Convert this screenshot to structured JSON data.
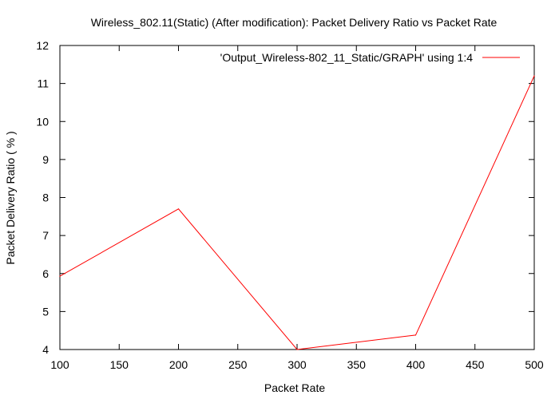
{
  "chart_data": {
    "type": "line",
    "title": "Wireless_802.11(Static) (After modification): Packet Delivery Ratio vs Packet Rate",
    "xlabel": "Packet Rate",
    "ylabel": "Packet Delivery Ratio ( % )",
    "xlim": [
      100,
      500
    ],
    "ylim": [
      4,
      12
    ],
    "xticks": [
      "100",
      "150",
      "200",
      "250",
      "300",
      "350",
      "400",
      "450",
      "500"
    ],
    "yticks": [
      "4",
      "5",
      "6",
      "7",
      "8",
      "9",
      "10",
      "11",
      "12"
    ],
    "grid": false,
    "legend_position": "top-right",
    "series": [
      {
        "name": "'Output_Wireless-802_11_Static/GRAPH' using 1:4",
        "color": "#ff0000",
        "x": [
          100,
          200,
          300,
          400,
          500
        ],
        "y": [
          5.93,
          7.7,
          4.0,
          4.38,
          11.2
        ]
      }
    ]
  }
}
